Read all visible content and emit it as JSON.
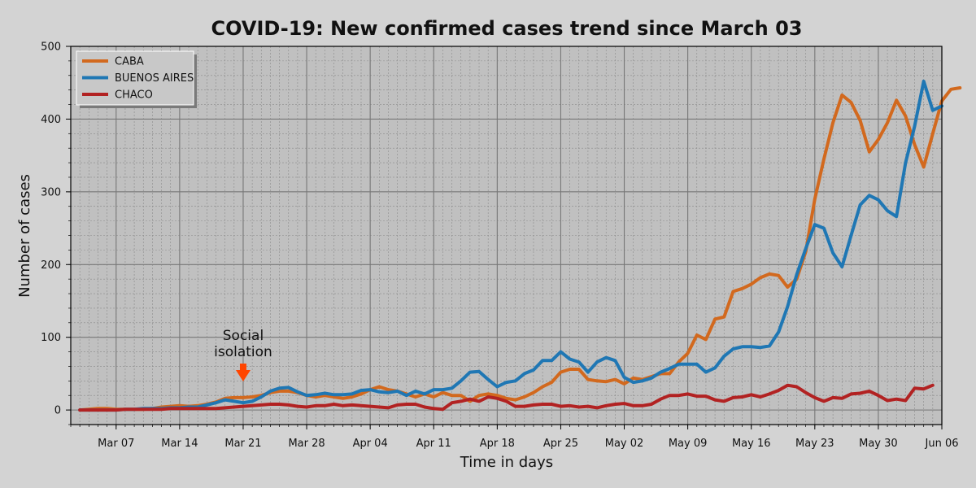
{
  "chart_data": {
    "type": "line",
    "title": "COVID-19: New confirmed cases trend since March 03",
    "xlabel": "Time in days",
    "ylabel": "Number of cases",
    "ylim": [
      -20,
      500
    ],
    "xlim": [
      "2020-03-02",
      "2020-06-06"
    ],
    "grid": true,
    "legend_position": "top-left",
    "x_ticks": [
      {
        "date": "2020-03-07",
        "label": "Mar 07"
      },
      {
        "date": "2020-03-14",
        "label": "Mar 14"
      },
      {
        "date": "2020-03-21",
        "label": "Mar 21"
      },
      {
        "date": "2020-03-28",
        "label": "Mar 28"
      },
      {
        "date": "2020-04-04",
        "label": "Apr 04"
      },
      {
        "date": "2020-04-11",
        "label": "Apr 11"
      },
      {
        "date": "2020-04-18",
        "label": "Apr 18"
      },
      {
        "date": "2020-04-25",
        "label": "Apr 25"
      },
      {
        "date": "2020-05-02",
        "label": "May 02"
      },
      {
        "date": "2020-05-09",
        "label": "May 09"
      },
      {
        "date": "2020-05-16",
        "label": "May 16"
      },
      {
        "date": "2020-05-23",
        "label": "May 23"
      },
      {
        "date": "2020-05-30",
        "label": "May 30"
      },
      {
        "date": "2020-06-06",
        "label": "Jun 06"
      }
    ],
    "y_ticks": [
      0,
      100,
      200,
      300,
      400,
      500
    ],
    "x_start": "2020-03-03",
    "series": [
      {
        "name": "CABA",
        "color": "#d2691e",
        "values": [
          0,
          1,
          2,
          2,
          1,
          1,
          1,
          1,
          2,
          4,
          5,
          6,
          5,
          6,
          8,
          11,
          16,
          17,
          17,
          18,
          20,
          24,
          26,
          26,
          24,
          20,
          18,
          20,
          18,
          16,
          18,
          22,
          28,
          32,
          28,
          26,
          22,
          18,
          22,
          18,
          24,
          20,
          20,
          12,
          20,
          22,
          20,
          16,
          14,
          18,
          24,
          32,
          38,
          52,
          56,
          56,
          42,
          40,
          39,
          42,
          36,
          44,
          42,
          46,
          50,
          50,
          66,
          78,
          103,
          97,
          125,
          128,
          163,
          167,
          173,
          182,
          187,
          185,
          169,
          180,
          218,
          290,
          345,
          395,
          433,
          423,
          398,
          355,
          372,
          395,
          426,
          404,
          365,
          334,
          380,
          425,
          441,
          443
        ]
      },
      {
        "name": "BUENOS AIRES",
        "color": "#1f77b4",
        "values": [
          0,
          0,
          0,
          0,
          0,
          1,
          1,
          2,
          2,
          2,
          3,
          3,
          4,
          4,
          7,
          10,
          14,
          12,
          10,
          12,
          18,
          26,
          30,
          31,
          25,
          20,
          21,
          23,
          21,
          21,
          22,
          27,
          28,
          25,
          24,
          26,
          20,
          26,
          22,
          28,
          28,
          30,
          40,
          52,
          53,
          42,
          32,
          38,
          40,
          50,
          55,
          68,
          68,
          80,
          70,
          66,
          52,
          66,
          72,
          68,
          45,
          38,
          40,
          44,
          52,
          57,
          63,
          63,
          63,
          52,
          58,
          74,
          84,
          87,
          87,
          86,
          88,
          107,
          142,
          186,
          222,
          255,
          250,
          216,
          197,
          240,
          282,
          295,
          289,
          274,
          266,
          340,
          390,
          452,
          412,
          418
        ]
      },
      {
        "name": "CHACO",
        "color": "#b22222",
        "values": [
          0,
          0,
          0,
          0,
          0,
          1,
          1,
          1,
          1,
          1,
          2,
          2,
          2,
          2,
          2,
          2,
          3,
          4,
          5,
          6,
          7,
          8,
          8,
          7,
          5,
          4,
          6,
          6,
          8,
          6,
          7,
          6,
          5,
          4,
          3,
          7,
          8,
          8,
          4,
          2,
          1,
          10,
          12,
          15,
          12,
          18,
          16,
          12,
          5,
          5,
          7,
          8,
          8,
          5,
          6,
          4,
          5,
          3,
          6,
          8,
          9,
          6,
          6,
          8,
          15,
          20,
          20,
          22,
          19,
          19,
          14,
          12,
          17,
          18,
          21,
          18,
          22,
          27,
          34,
          32,
          24,
          17,
          12,
          17,
          16,
          22,
          23,
          26,
          20,
          13,
          15,
          13,
          30,
          29,
          34
        ]
      }
    ],
    "annotations": [
      {
        "text_line1": "Social",
        "text_line2": "isolation",
        "date": "2020-03-21",
        "arrow_color": "#ff4500"
      }
    ]
  }
}
